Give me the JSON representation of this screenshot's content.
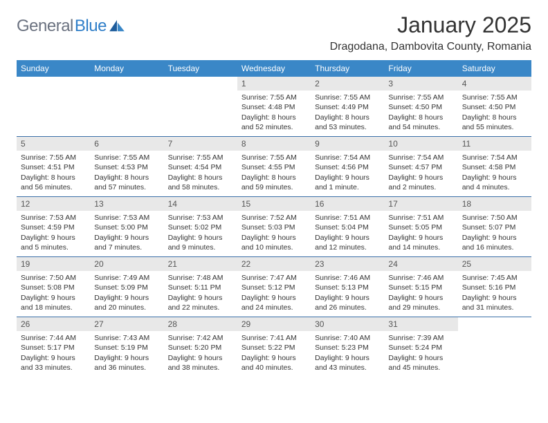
{
  "logo": {
    "text1": "General",
    "text2": "Blue"
  },
  "title": "January 2025",
  "location": "Dragodana, Dambovita County, Romania",
  "colors": {
    "header_bg": "#3a87c7",
    "header_text": "#ffffff",
    "divider": "#3a6fa8",
    "daynum_bg": "#e8e8e8",
    "body_text": "#333333",
    "logo_gray": "#6b7280",
    "logo_blue": "#2f7ec8"
  },
  "day_names": [
    "Sunday",
    "Monday",
    "Tuesday",
    "Wednesday",
    "Thursday",
    "Friday",
    "Saturday"
  ],
  "weeks": [
    [
      {
        "n": "",
        "sr": "",
        "ss": "",
        "dl": ""
      },
      {
        "n": "",
        "sr": "",
        "ss": "",
        "dl": ""
      },
      {
        "n": "",
        "sr": "",
        "ss": "",
        "dl": ""
      },
      {
        "n": "1",
        "sr": "7:55 AM",
        "ss": "4:48 PM",
        "dl": "8 hours and 52 minutes."
      },
      {
        "n": "2",
        "sr": "7:55 AM",
        "ss": "4:49 PM",
        "dl": "8 hours and 53 minutes."
      },
      {
        "n": "3",
        "sr": "7:55 AM",
        "ss": "4:50 PM",
        "dl": "8 hours and 54 minutes."
      },
      {
        "n": "4",
        "sr": "7:55 AM",
        "ss": "4:50 PM",
        "dl": "8 hours and 55 minutes."
      }
    ],
    [
      {
        "n": "5",
        "sr": "7:55 AM",
        "ss": "4:51 PM",
        "dl": "8 hours and 56 minutes."
      },
      {
        "n": "6",
        "sr": "7:55 AM",
        "ss": "4:53 PM",
        "dl": "8 hours and 57 minutes."
      },
      {
        "n": "7",
        "sr": "7:55 AM",
        "ss": "4:54 PM",
        "dl": "8 hours and 58 minutes."
      },
      {
        "n": "8",
        "sr": "7:55 AM",
        "ss": "4:55 PM",
        "dl": "8 hours and 59 minutes."
      },
      {
        "n": "9",
        "sr": "7:54 AM",
        "ss": "4:56 PM",
        "dl": "9 hours and 1 minute."
      },
      {
        "n": "10",
        "sr": "7:54 AM",
        "ss": "4:57 PM",
        "dl": "9 hours and 2 minutes."
      },
      {
        "n": "11",
        "sr": "7:54 AM",
        "ss": "4:58 PM",
        "dl": "9 hours and 4 minutes."
      }
    ],
    [
      {
        "n": "12",
        "sr": "7:53 AM",
        "ss": "4:59 PM",
        "dl": "9 hours and 5 minutes."
      },
      {
        "n": "13",
        "sr": "7:53 AM",
        "ss": "5:00 PM",
        "dl": "9 hours and 7 minutes."
      },
      {
        "n": "14",
        "sr": "7:53 AM",
        "ss": "5:02 PM",
        "dl": "9 hours and 9 minutes."
      },
      {
        "n": "15",
        "sr": "7:52 AM",
        "ss": "5:03 PM",
        "dl": "9 hours and 10 minutes."
      },
      {
        "n": "16",
        "sr": "7:51 AM",
        "ss": "5:04 PM",
        "dl": "9 hours and 12 minutes."
      },
      {
        "n": "17",
        "sr": "7:51 AM",
        "ss": "5:05 PM",
        "dl": "9 hours and 14 minutes."
      },
      {
        "n": "18",
        "sr": "7:50 AM",
        "ss": "5:07 PM",
        "dl": "9 hours and 16 minutes."
      }
    ],
    [
      {
        "n": "19",
        "sr": "7:50 AM",
        "ss": "5:08 PM",
        "dl": "9 hours and 18 minutes."
      },
      {
        "n": "20",
        "sr": "7:49 AM",
        "ss": "5:09 PM",
        "dl": "9 hours and 20 minutes."
      },
      {
        "n": "21",
        "sr": "7:48 AM",
        "ss": "5:11 PM",
        "dl": "9 hours and 22 minutes."
      },
      {
        "n": "22",
        "sr": "7:47 AM",
        "ss": "5:12 PM",
        "dl": "9 hours and 24 minutes."
      },
      {
        "n": "23",
        "sr": "7:46 AM",
        "ss": "5:13 PM",
        "dl": "9 hours and 26 minutes."
      },
      {
        "n": "24",
        "sr": "7:46 AM",
        "ss": "5:15 PM",
        "dl": "9 hours and 29 minutes."
      },
      {
        "n": "25",
        "sr": "7:45 AM",
        "ss": "5:16 PM",
        "dl": "9 hours and 31 minutes."
      }
    ],
    [
      {
        "n": "26",
        "sr": "7:44 AM",
        "ss": "5:17 PM",
        "dl": "9 hours and 33 minutes."
      },
      {
        "n": "27",
        "sr": "7:43 AM",
        "ss": "5:19 PM",
        "dl": "9 hours and 36 minutes."
      },
      {
        "n": "28",
        "sr": "7:42 AM",
        "ss": "5:20 PM",
        "dl": "9 hours and 38 minutes."
      },
      {
        "n": "29",
        "sr": "7:41 AM",
        "ss": "5:22 PM",
        "dl": "9 hours and 40 minutes."
      },
      {
        "n": "30",
        "sr": "7:40 AM",
        "ss": "5:23 PM",
        "dl": "9 hours and 43 minutes."
      },
      {
        "n": "31",
        "sr": "7:39 AM",
        "ss": "5:24 PM",
        "dl": "9 hours and 45 minutes."
      },
      {
        "n": "",
        "sr": "",
        "ss": "",
        "dl": ""
      }
    ]
  ],
  "labels": {
    "sunrise": "Sunrise:",
    "sunset": "Sunset:",
    "daylight": "Daylight:"
  }
}
